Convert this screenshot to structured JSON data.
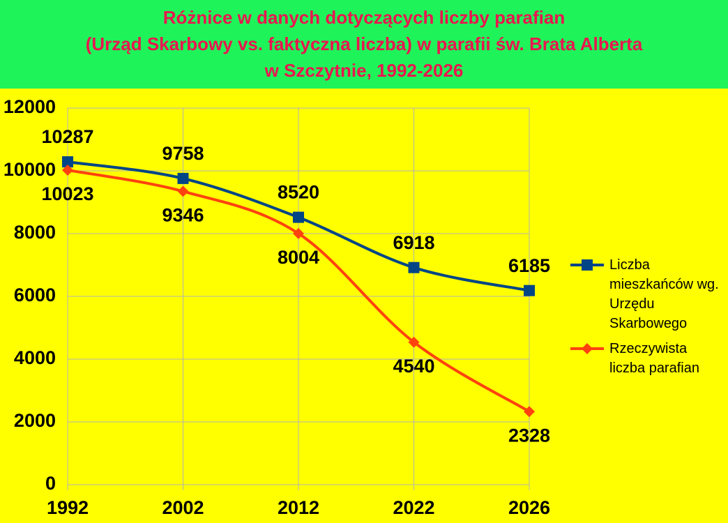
{
  "chart_data": {
    "type": "line",
    "title": "Różnice w danych dotyczących liczby parafian\n(Urząd Skarbowy vs. faktyczna liczba) w parafii św. Brata Alberta\nw Szczytnie, 1992-2026",
    "categories": [
      "1992",
      "2002",
      "2012",
      "2022",
      "2026"
    ],
    "series": [
      {
        "name": "Liczba mieszkańców wg. Urzędu Skarbowego",
        "color": "#004586",
        "marker": "square",
        "values": [
          10287,
          9758,
          8520,
          6918,
          6185
        ]
      },
      {
        "name": "Rzeczywista liczba parafian",
        "color": "#ff420e",
        "marker": "diamond",
        "values": [
          10023,
          9346,
          8004,
          4540,
          2328
        ]
      }
    ],
    "ylim": [
      0,
      12000
    ],
    "yticks": [
      0,
      2000,
      4000,
      6000,
      8000,
      10000,
      12000
    ],
    "grid": true,
    "legend": "right"
  }
}
